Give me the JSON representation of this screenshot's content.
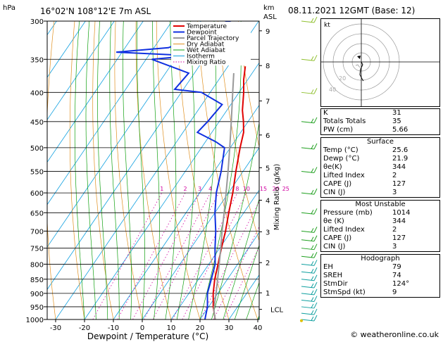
{
  "header": {
    "location": "16°02'N  108°12'E  7m  ASL",
    "datetime": "08.11.2021  12GMT  (Base: 12)",
    "hpa_label": "hPa",
    "km_label": "km",
    "asl_label": "ASL"
  },
  "legend": [
    "Temperature",
    "Dewpoint",
    "Parcel Trajectory",
    "Dry Adiabat",
    "Wet Adiabat",
    "Isotherm",
    "Mixing Ratio"
  ],
  "colors": {
    "temperature": "#e00000",
    "dewpoint": "#1030e0",
    "parcel": "#999999",
    "dry_adiabat": "#e09020",
    "wet_adiabat": "#10a010",
    "isotherm": "#10a0e0",
    "mixing_ratio": "#d000a0"
  },
  "chart_data": {
    "type": "line",
    "xlabel": "Dewpoint / Temperature (°C)",
    "ylabel": "Mixing Ratio (g/kg)",
    "pressure_levels": [
      300,
      350,
      400,
      450,
      500,
      550,
      600,
      650,
      700,
      750,
      800,
      850,
      900,
      950,
      1000
    ],
    "temperature_ticks": [
      -30,
      -20,
      -10,
      0,
      10,
      20,
      30,
      40
    ],
    "km_ticks": [
      1,
      2,
      3,
      4,
      5,
      6,
      7,
      8,
      9
    ],
    "km_pressure": [
      898,
      795,
      702,
      618,
      542,
      475,
      414,
      359,
      312
    ],
    "mixing_ratio_labels": [
      "1",
      "2",
      "3",
      "4",
      "8",
      "10",
      "15",
      "20",
      "25"
    ],
    "lcl_label": "LCL",
    "lcl_pressure": 960,
    "series": [
      {
        "name": "Temperature",
        "color": "#e00000",
        "points": [
          [
            1005,
            25.6
          ],
          [
            950,
            21.6
          ],
          [
            900,
            18.4
          ],
          [
            850,
            15.6
          ],
          [
            800,
            13.2
          ],
          [
            750,
            10.6
          ],
          [
            700,
            8.0
          ],
          [
            650,
            4.8
          ],
          [
            600,
            1.5
          ],
          [
            550,
            -2.5
          ],
          [
            500,
            -6.6
          ],
          [
            470,
            -9.0
          ],
          [
            450,
            -11.6
          ],
          [
            430,
            -14.6
          ],
          [
            400,
            -18.4
          ],
          [
            380,
            -21.4
          ],
          [
            360,
            -24.0
          ]
        ]
      },
      {
        "name": "Dewpoint",
        "color": "#1030e0",
        "points": [
          [
            1005,
            21.9
          ],
          [
            950,
            19.6
          ],
          [
            900,
            16.4
          ],
          [
            850,
            14.4
          ],
          [
            800,
            12.2
          ],
          [
            750,
            8.4
          ],
          [
            700,
            4.6
          ],
          [
            650,
            0.0
          ],
          [
            600,
            -4.2
          ],
          [
            550,
            -7.6
          ],
          [
            500,
            -12.0
          ],
          [
            488,
            -16.5
          ],
          [
            470,
            -25.0
          ],
          [
            450,
            -24.0
          ],
          [
            420,
            -23.0
          ],
          [
            400,
            -33.0
          ],
          [
            395,
            -43.0
          ],
          [
            370,
            -42.0
          ],
          [
            350,
            -58.0
          ],
          [
            345,
            -45.0
          ],
          [
            340,
            -72.0
          ],
          [
            334,
            -55.0
          ],
          [
            320,
            -48.0
          ],
          [
            301,
            -40.0
          ],
          [
            298,
            -44.0
          ]
        ]
      },
      {
        "name": "Parcel Trajectory",
        "color": "#999999",
        "points": [
          [
            1005,
            25.6
          ],
          [
            960,
            22.4
          ],
          [
            900,
            19.4
          ],
          [
            850,
            16.6
          ],
          [
            800,
            13.6
          ],
          [
            750,
            10.4
          ],
          [
            700,
            6.8
          ],
          [
            650,
            3.2
          ],
          [
            600,
            -0.8
          ],
          [
            550,
            -5.2
          ],
          [
            500,
            -10.2
          ],
          [
            450,
            -15.8
          ],
          [
            400,
            -22.2
          ],
          [
            370,
            -26.4
          ]
        ]
      }
    ],
    "wind_barbs": [
      1000,
      975,
      950,
      925,
      900,
      875,
      850,
      825,
      800,
      775,
      750,
      725,
      700,
      650,
      600,
      550,
      500,
      450,
      400,
      350,
      300
    ]
  },
  "hodograph": {
    "label": "kt",
    "ring_labels": [
      "40",
      "20"
    ]
  },
  "indices": {
    "basic": [
      [
        "K",
        "31"
      ],
      [
        "Totals Totals",
        "35"
      ],
      [
        "PW (cm)",
        "5.66"
      ]
    ],
    "surface_title": "Surface",
    "surface": [
      [
        "Temp (°C)",
        "25.6"
      ],
      [
        "Dewp (°C)",
        "21.9"
      ],
      [
        "θe(K)",
        "344"
      ],
      [
        "Lifted Index",
        "2"
      ],
      [
        "CAPE (J)",
        "127"
      ],
      [
        "CIN (J)",
        "3"
      ]
    ],
    "unstable_title": "Most Unstable",
    "unstable": [
      [
        "Pressure (mb)",
        "1014"
      ],
      [
        "θe (K)",
        "344"
      ],
      [
        "Lifted Index",
        "2"
      ],
      [
        "CAPE (J)",
        "127"
      ],
      [
        "CIN (J)",
        "3"
      ]
    ],
    "hodo_title": "Hodograph",
    "hodo": [
      [
        "EH",
        "79"
      ],
      [
        "SREH",
        "74"
      ],
      [
        "StmDir",
        "124°"
      ],
      [
        "StmSpd (kt)",
        "9"
      ]
    ]
  },
  "footer": "© weatheronline.co.uk"
}
